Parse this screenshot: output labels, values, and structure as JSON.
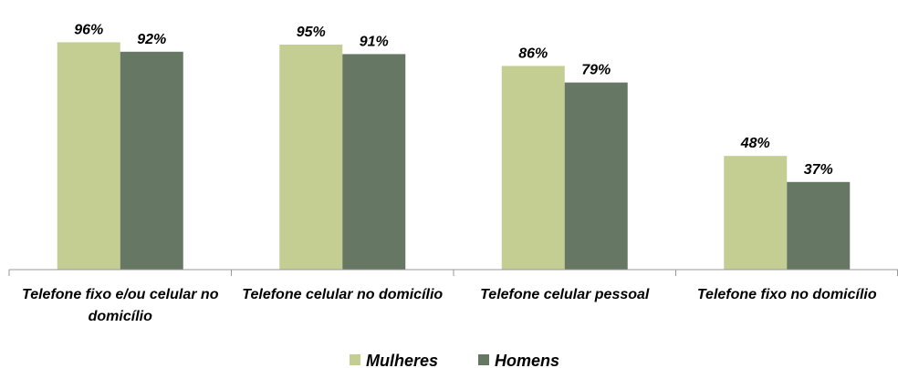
{
  "chart_data": {
    "type": "bar",
    "categories": [
      "Telefone fixo e/ou celular no domicílio",
      "Telefone celular no domicílio",
      "Telefone celular pessoal",
      "Telefone fixo no domicílio"
    ],
    "series": [
      {
        "name": "Mulheres",
        "color": "#c4cd92",
        "values": [
          96,
          95,
          86,
          48
        ],
        "value_labels": [
          "96%",
          "95%",
          "86%",
          "48%"
        ]
      },
      {
        "name": "Homens",
        "color": "#667863",
        "values": [
          92,
          91,
          79,
          37
        ],
        "value_labels": [
          "92%",
          "91%",
          "79%",
          "37%"
        ]
      }
    ],
    "ylim": [
      0,
      100
    ],
    "legend": "bottom"
  }
}
